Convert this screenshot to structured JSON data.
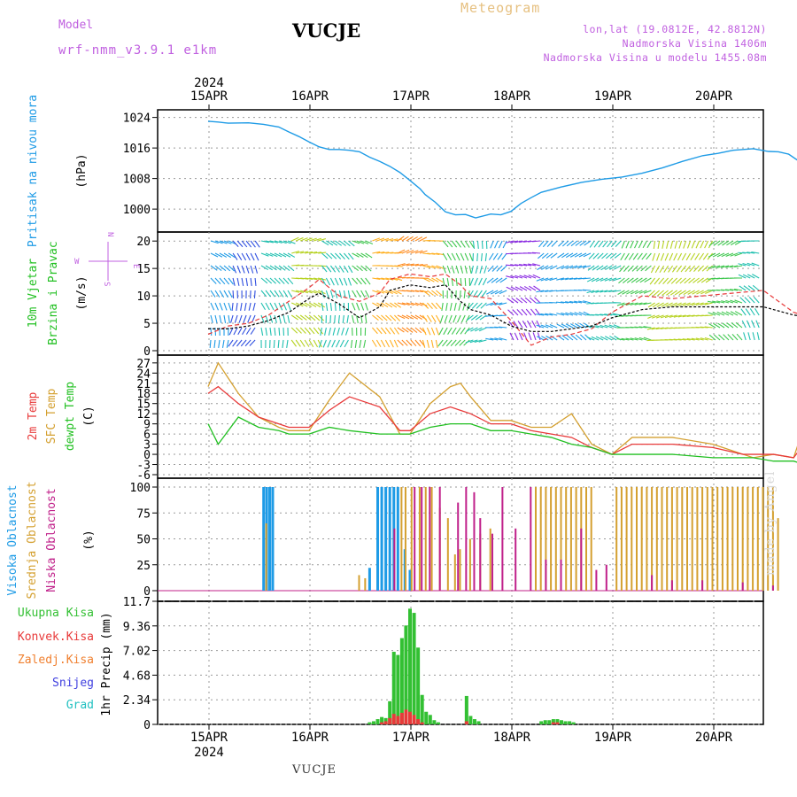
{
  "header": {
    "title": "VUCJE",
    "meteogram_label": "Meteogram",
    "model_label": "Model",
    "model_name": "wrf-nmm_v3.9.1 e1km",
    "location_line1": "lon,lat (19.0812E, 42.8812N)",
    "location_line2": "Nadmorska Visina 1406m",
    "location_line3": "Nadmorska Visina u modelu 1455.08m",
    "bottom_title": "VUCJE",
    "watermark": "made by Angel"
  },
  "colors": {
    "pressure": "#1e9be6",
    "wind_speed": "#000000",
    "wind_gust": "#e83a3a",
    "temp_2m": "#e83a3a",
    "temp_sfc": "#d4a030",
    "dewpoint": "#22c022",
    "cloud_high": "#1e9be6",
    "cloud_mid": "#d4a030",
    "cloud_low": "#c0208a",
    "precip_total": "#33c033",
    "precip_conv": "#e83a3a",
    "precip_frozen": "#f08030",
    "snow": "#4040e0",
    "graupel": "#20c0c0"
  },
  "chart_data": [
    {
      "type": "line",
      "panel": "pressure",
      "ylabel_main": "Pritisak na nivou mora",
      "ylabel_unit": "(hPa)",
      "x_ticks": [
        "15APR",
        "16APR",
        "17APR",
        "18APR",
        "19APR",
        "20APR"
      ],
      "x_top_year": "2024",
      "ylim": [
        994,
        1026
      ],
      "yticks": [
        1000,
        1008,
        1016,
        1024
      ],
      "grid": true,
      "series": [
        {
          "x": [
            0,
            0.1,
            0.2,
            0.4,
            0.55,
            0.7,
            0.8,
            0.9,
            1.0,
            1.1,
            1.2,
            1.3,
            1.4,
            1.5,
            1.6,
            1.7,
            1.8,
            1.9,
            2.0,
            2.1,
            2.15,
            2.25,
            2.35,
            2.45,
            2.55,
            2.65,
            2.8,
            2.9,
            3.0,
            3.1,
            3.2,
            3.3,
            3.5,
            3.7,
            3.9,
            4.1,
            4.3,
            4.5,
            4.7,
            4.9,
            5.05,
            5.2,
            5.4,
            5.55,
            5.65,
            5.75,
            5.85,
            5.95,
            6.0
          ],
          "values": [
            1023,
            1022.8,
            1022.5,
            1022.6,
            1022.2,
            1021.5,
            1020.2,
            1019.0,
            1017.6,
            1016.3,
            1015.6,
            1015.6,
            1015.4,
            1015.0,
            1013.6,
            1012.5,
            1011.2,
            1009.6,
            1007.5,
            1005.3,
            1003.8,
            1001.8,
            999.3,
            998.5,
            998.6,
            997.7,
            998.7,
            998.5,
            999.4,
            1001.5,
            1003.0,
            1004.4,
            1005.8,
            1007.0,
            1007.8,
            1008.4,
            1009.4,
            1010.8,
            1012.5,
            1014.0,
            1014.6,
            1015.4,
            1015.8,
            1015.1,
            1015.0,
            1014.4,
            1012.6,
            1012.4,
            1012.3
          ]
        }
      ]
    },
    {
      "type": "line",
      "panel": "wind",
      "ylabel_main": "10m Vjetar",
      "ylabel_sub": "Brzina i Pravac",
      "ylabel_unit": "(m/s)",
      "compass_labels": [
        "N",
        "S",
        "E",
        "W"
      ],
      "ylim": [
        0,
        21
      ],
      "yticks": [
        0,
        5,
        10,
        15,
        20
      ],
      "grid": true,
      "series": [
        {
          "name": "speed",
          "x": [
            0,
            0.2,
            0.4,
            0.6,
            0.8,
            1.0,
            1.1,
            1.3,
            1.5,
            1.7,
            1.8,
            2.0,
            2.2,
            2.35,
            2.5,
            2.6,
            2.8,
            3.0,
            3.2,
            3.4,
            3.6,
            3.8,
            4.0,
            4.3,
            4.6,
            4.9,
            5.2,
            5.5,
            5.8,
            6.0
          ],
          "values": [
            4,
            4,
            4.5,
            5.5,
            7,
            9.5,
            10.5,
            8.5,
            6,
            8,
            11,
            12,
            11.5,
            12,
            9,
            7.5,
            6.5,
            4.5,
            3.5,
            3.5,
            4,
            4.5,
            6,
            7.5,
            8,
            8,
            8,
            8,
            6.5,
            6
          ]
        },
        {
          "name": "gust",
          "x": [
            0,
            0.2,
            0.4,
            0.6,
            0.8,
            1.0,
            1.1,
            1.3,
            1.5,
            1.7,
            1.8,
            2.0,
            2.2,
            2.35,
            2.5,
            2.6,
            2.8,
            3.0,
            3.2,
            3.4,
            3.6,
            3.8,
            4.0,
            4.3,
            4.6,
            4.9,
            5.2,
            5.5,
            5.8,
            6.0
          ],
          "values": [
            3,
            4.5,
            5,
            6.5,
            9,
            11.5,
            13,
            10,
            9,
            10.5,
            13,
            14,
            13.5,
            14,
            12,
            10,
            9.5,
            5.5,
            1,
            2.5,
            3,
            4,
            7,
            10,
            9.5,
            10,
            10.5,
            11,
            7,
            6
          ]
        }
      ]
    },
    {
      "type": "line",
      "panel": "temperature",
      "ylabel_series": [
        "2m Temp",
        "SFC Temp",
        "dewpt Temp"
      ],
      "ylabel_unit": "(C)",
      "ylim": [
        -6,
        28
      ],
      "yticks": [
        -6,
        -3,
        0,
        3,
        6,
        9,
        12,
        15,
        18,
        21,
        24,
        27
      ],
      "grid": true,
      "series": [
        {
          "name": "2m Temp",
          "x": [
            0,
            0.1,
            0.3,
            0.5,
            0.7,
            0.8,
            1.0,
            1.2,
            1.4,
            1.7,
            1.9,
            2.0,
            2.2,
            2.4,
            2.5,
            2.6,
            2.8,
            3.0,
            3.2,
            3.4,
            3.6,
            3.8,
            4.0,
            4.2,
            4.6,
            5.0,
            5.3,
            5.4,
            5.6,
            5.8,
            5.9,
            6.0
          ],
          "values": [
            18,
            20,
            15,
            11,
            9,
            8,
            8,
            13,
            17,
            14,
            7,
            7,
            12,
            14,
            13,
            12,
            9,
            9,
            7,
            6,
            5,
            2,
            0,
            3,
            3,
            2,
            0,
            0,
            0,
            -1,
            3,
            6
          ]
        },
        {
          "name": "SFC Temp",
          "x": [
            0,
            0.1,
            0.3,
            0.5,
            0.7,
            0.8,
            1.0,
            1.2,
            1.4,
            1.7,
            1.9,
            2.0,
            2.2,
            2.4,
            2.5,
            2.6,
            2.8,
            3.0,
            3.2,
            3.4,
            3.6,
            3.8,
            4.0,
            4.2,
            4.6,
            5.0,
            5.3,
            5.4,
            5.6,
            5.8,
            5.9,
            6.0
          ],
          "values": [
            20,
            27,
            18,
            11,
            8,
            7,
            7,
            16,
            24,
            17,
            6,
            6,
            15,
            20,
            21,
            17,
            10,
            10,
            8,
            8,
            12,
            3,
            0,
            5,
            5,
            3,
            0,
            -1,
            0,
            -1,
            8,
            14
          ]
        },
        {
          "name": "dewpt Temp",
          "x": [
            0,
            0.1,
            0.3,
            0.5,
            0.7,
            0.8,
            1.0,
            1.2,
            1.4,
            1.7,
            1.9,
            2.0,
            2.2,
            2.4,
            2.5,
            2.6,
            2.8,
            3.0,
            3.2,
            3.4,
            3.6,
            3.8,
            4.0,
            4.2,
            4.6,
            5.0,
            5.3,
            5.4,
            5.6,
            5.8,
            5.9,
            6.0
          ],
          "values": [
            9,
            3,
            11,
            8,
            7,
            6,
            6,
            8,
            7,
            6,
            6,
            6,
            8,
            9,
            9,
            9,
            7,
            7,
            6,
            5,
            3,
            2,
            0,
            0,
            0,
            -1,
            -1,
            -1,
            -2,
            -2,
            -3,
            -5
          ]
        }
      ]
    },
    {
      "type": "bar",
      "panel": "cloud",
      "ylabel_series": [
        "Visoka Oblacnost",
        "Srednja Oblacnost",
        "Niska Oblacnost"
      ],
      "ylabel_unit": "(%)",
      "ylim": [
        0,
        100
      ],
      "yticks": [
        0,
        25,
        50,
        75,
        100
      ],
      "grid": true,
      "series": [
        {
          "name": "Visoka Oblacnost",
          "x": [
            0.55,
            0.58,
            0.61,
            0.64,
            1.6,
            1.68,
            1.72,
            1.76,
            1.8,
            1.84,
            1.88,
            1.95,
            2.0
          ],
          "values": [
            100,
            100,
            100,
            100,
            22,
            100,
            100,
            100,
            100,
            100,
            100,
            40,
            20
          ]
        },
        {
          "name": "Srednja Oblacnost",
          "x": [
            0.58,
            1.5,
            1.56,
            1.92,
            1.96,
            2.02,
            2.1,
            2.16,
            2.22,
            2.3,
            2.38,
            2.45,
            2.5,
            2.6,
            2.7,
            2.8,
            3.25,
            3.3,
            3.35,
            3.4,
            3.45,
            3.5,
            3.55,
            3.6,
            3.65,
            3.7,
            3.75,
            3.8,
            4.05,
            4.1,
            4.15,
            4.2,
            4.25,
            4.3,
            4.35,
            4.4,
            4.45,
            4.5,
            4.55,
            4.6,
            4.65,
            4.7,
            4.75,
            4.8,
            4.85,
            4.9,
            4.95,
            5.0,
            5.05,
            5.1,
            5.15,
            5.2,
            5.25,
            5.3,
            5.35,
            5.4,
            5.45,
            5.5,
            5.55,
            5.6,
            5.65
          ],
          "values": [
            65,
            15,
            12,
            100,
            100,
            100,
            100,
            100,
            100,
            80,
            70,
            35,
            40,
            50,
            55,
            60,
            100,
            100,
            100,
            100,
            100,
            100,
            100,
            100,
            100,
            100,
            100,
            100,
            100,
            100,
            100,
            100,
            100,
            100,
            100,
            100,
            100,
            100,
            100,
            100,
            100,
            100,
            100,
            100,
            100,
            100,
            100,
            100,
            100,
            100,
            100,
            100,
            100,
            100,
            100,
            100,
            100,
            100,
            100,
            100,
            70
          ]
        },
        {
          "name": "Niska Oblacnost",
          "x": [
            1.85,
            2.05,
            2.12,
            2.2,
            2.3,
            2.48,
            2.56,
            2.64,
            2.7,
            2.82,
            2.92,
            3.05,
            3.2,
            3.35,
            3.5,
            3.7,
            3.85,
            3.95,
            4.4,
            4.6,
            4.9,
            5.3,
            5.6,
            5.85,
            5.95
          ],
          "values": [
            60,
            100,
            100,
            100,
            100,
            85,
            100,
            95,
            70,
            55,
            100,
            60,
            100,
            30,
            30,
            60,
            20,
            25,
            15,
            10,
            10,
            8,
            5,
            5,
            40
          ]
        }
      ]
    },
    {
      "type": "bar",
      "panel": "precip",
      "ylabel_series": [
        "Ukupna Kisa",
        "Konvek.Kisa",
        "Zaledj.Kisa",
        "Snijeg",
        "Grad"
      ],
      "ylabel_unit": "1hr Precip (mm)",
      "ylim": [
        0,
        11.7
      ],
      "yticks": [
        0,
        2.34,
        4.68,
        7.02,
        9.36,
        11.7
      ],
      "x_ticks": [
        "15APR",
        "16APR",
        "17APR",
        "18APR",
        "19APR",
        "20APR"
      ],
      "x_bottom_year": "2024",
      "grid": true,
      "series": [
        {
          "name": "Ukupna Kisa",
          "x": [
            1.6,
            1.64,
            1.68,
            1.72,
            1.76,
            1.8,
            1.84,
            1.88,
            1.92,
            1.96,
            2.0,
            2.04,
            2.08,
            2.12,
            2.16,
            2.2,
            2.24,
            2.28,
            2.56,
            2.6,
            2.64,
            2.68,
            3.3,
            3.34,
            3.38,
            3.42,
            3.46,
            3.5,
            3.54,
            3.58,
            3.62
          ],
          "values": [
            0.2,
            0.3,
            0.5,
            0.7,
            0.6,
            2.2,
            6.9,
            6.6,
            8.2,
            9.4,
            11.0,
            10.6,
            7.3,
            2.8,
            1.2,
            0.9,
            0.4,
            0.2,
            2.7,
            0.8,
            0.5,
            0.3,
            0.3,
            0.4,
            0.4,
            0.5,
            0.5,
            0.4,
            0.3,
            0.3,
            0.2
          ]
        },
        {
          "name": "Konvek.Kisa",
          "x": [
            1.72,
            1.76,
            1.8,
            1.84,
            1.88,
            1.92,
            1.96,
            2.0,
            2.04,
            2.08,
            2.12,
            2.56,
            3.42,
            3.46
          ],
          "values": [
            0.2,
            0.3,
            0.6,
            1.0,
            0.8,
            1.1,
            1.4,
            1.2,
            0.9,
            0.5,
            0.2,
            0.3,
            0.2,
            0.2
          ]
        }
      ]
    }
  ]
}
